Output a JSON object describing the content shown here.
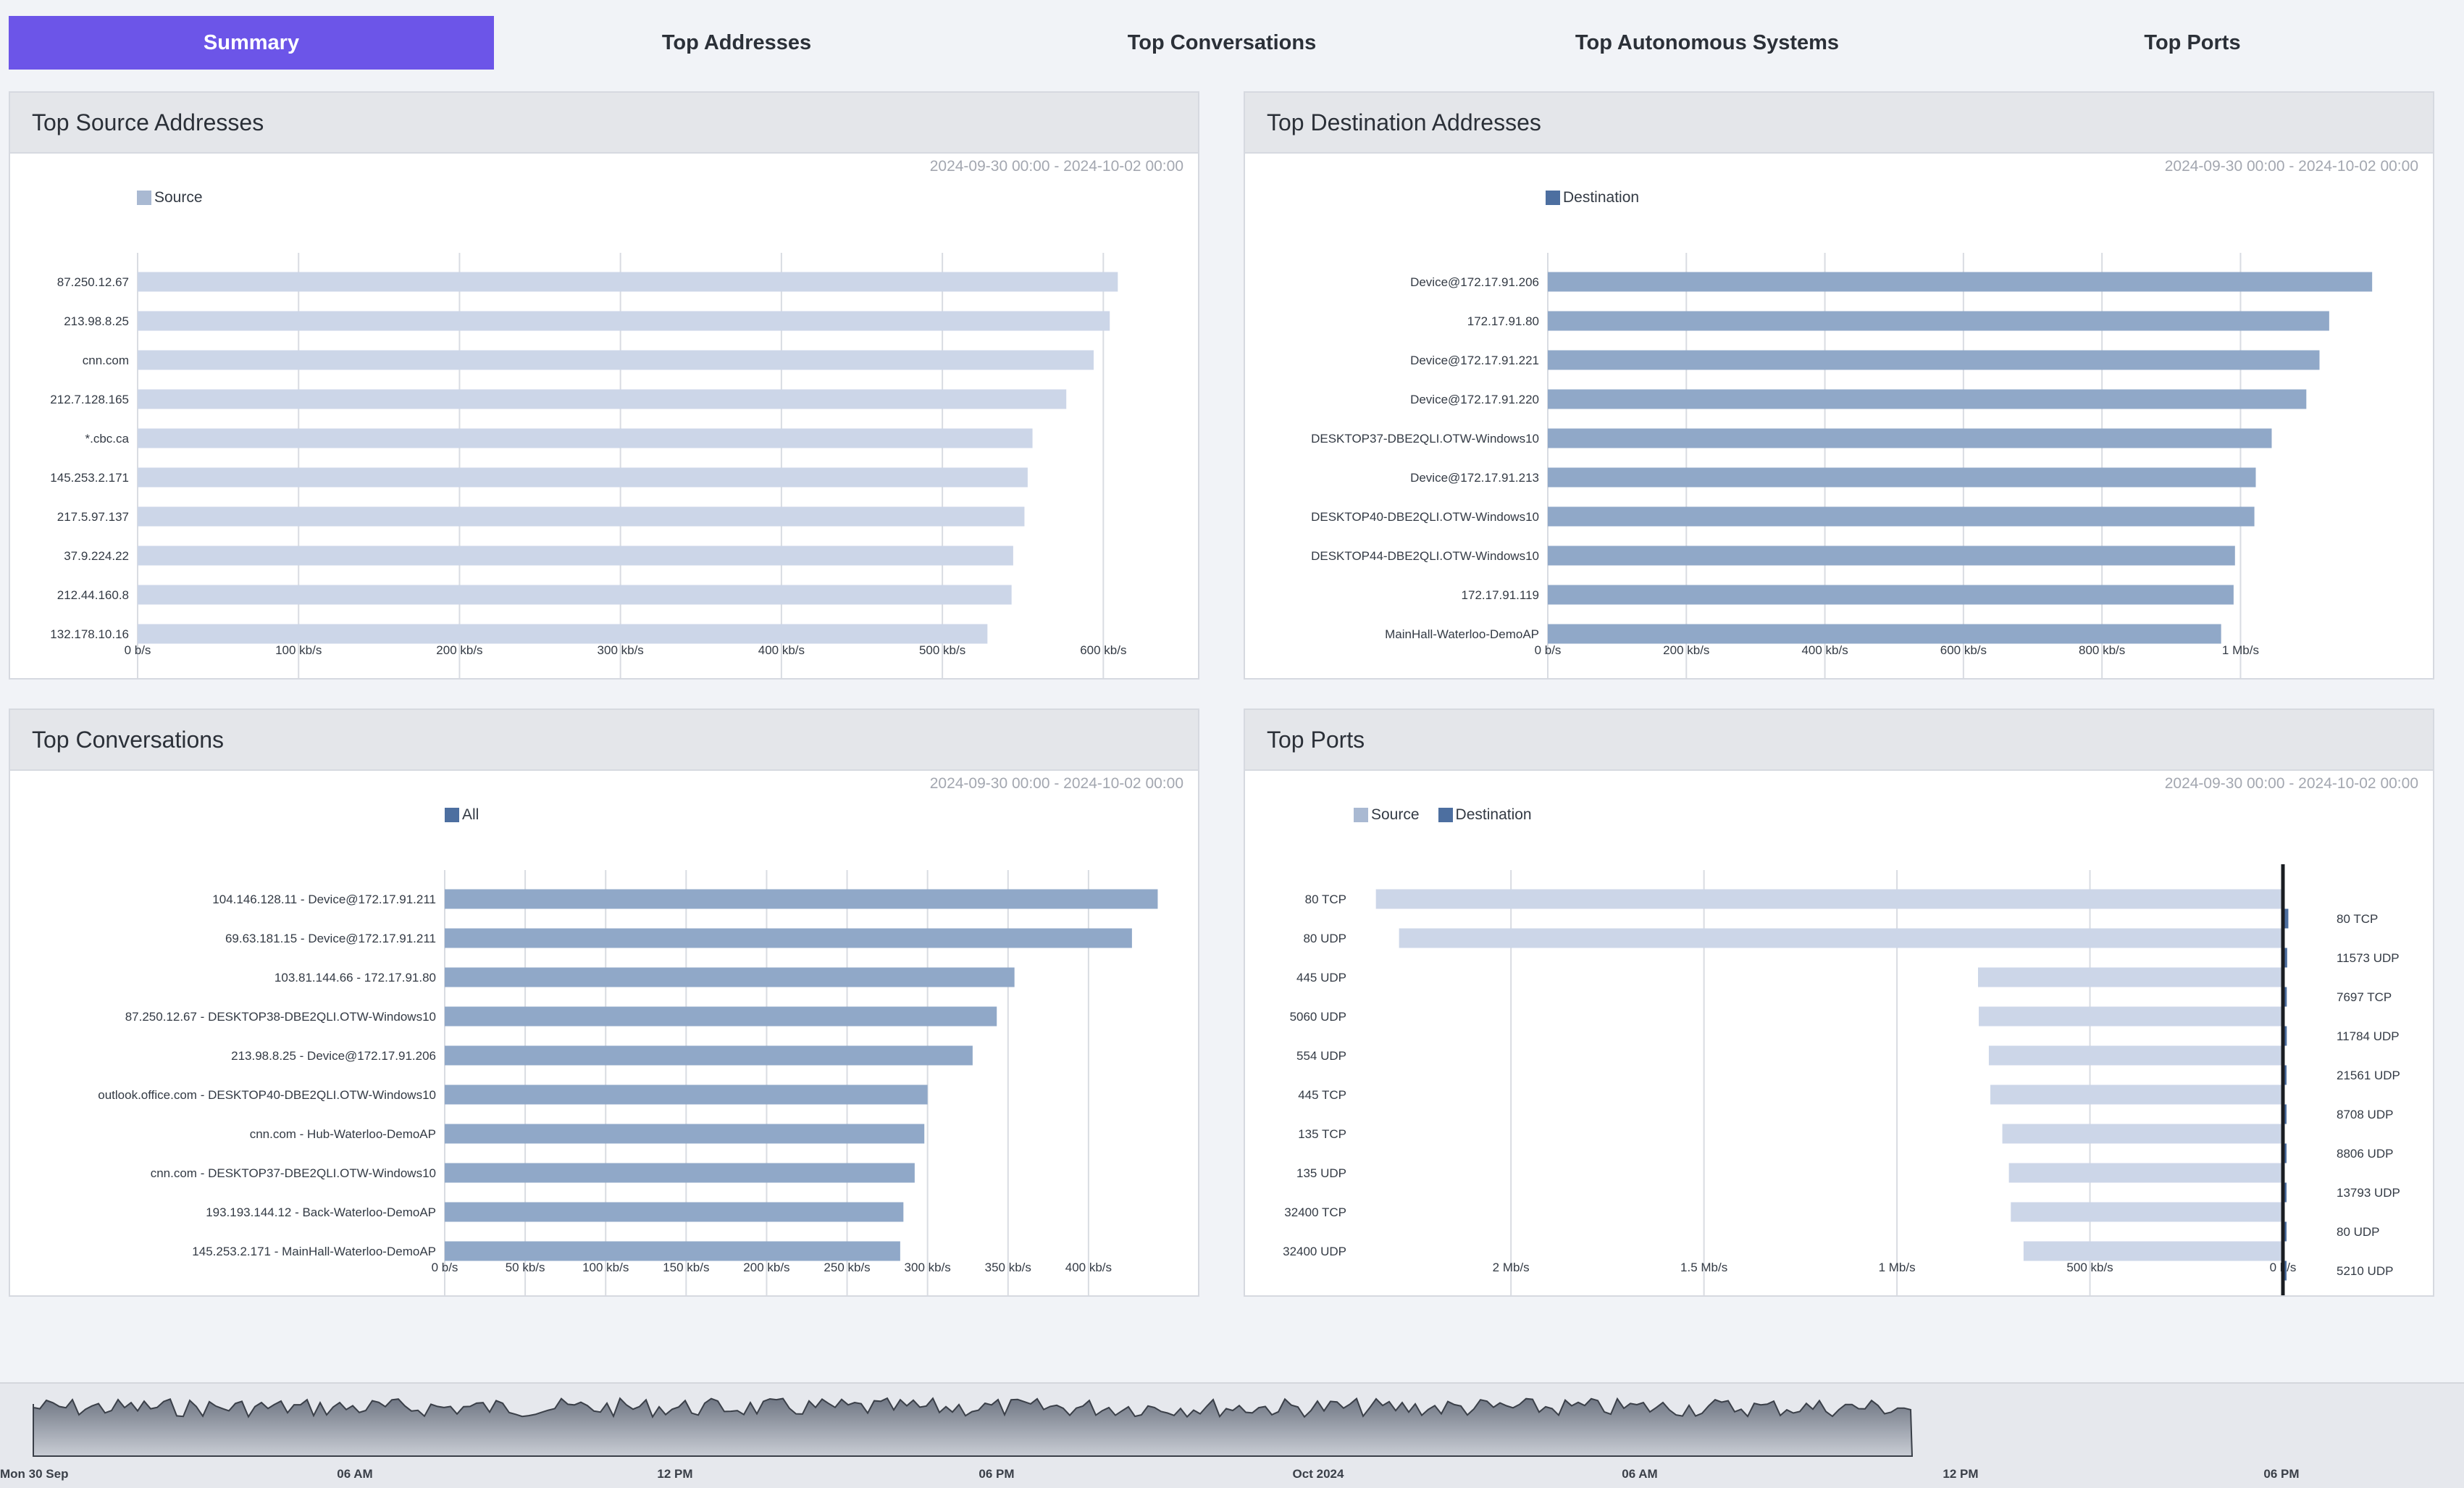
{
  "tabs": [
    {
      "label": "Summary",
      "active": true
    },
    {
      "label": "Top Addresses",
      "active": false
    },
    {
      "label": "Top Conversations",
      "active": false
    },
    {
      "label": "Top Autonomous Systems",
      "active": false
    },
    {
      "label": "Top Ports",
      "active": false
    }
  ],
  "colors": {
    "accent": "#6c55e8",
    "source_bar": "#ccd6e8",
    "dest_bar": "#90a8c8",
    "dest_legend": "#4d6fa0",
    "source_legend": "#a9b9d2"
  },
  "panels": {
    "src": {
      "title": "Top Source Addresses",
      "date": "2024-09-30 00:00 - 2024-10-02 00:00",
      "legend": [
        {
          "label": "Source",
          "color": "#a9b9d2"
        }
      ],
      "chart_data": {
        "type": "bar",
        "orientation": "horizontal",
        "categories": [
          "87.250.12.67",
          "213.98.8.25",
          "cnn.com",
          "212.7.128.165",
          "*.cbc.ca",
          "145.253.2.171",
          "217.5.97.137",
          "37.9.224.22",
          "212.44.160.8",
          "132.178.10.16"
        ],
        "values": [
          609,
          604,
          594,
          577,
          556,
          553,
          551,
          544,
          543,
          528
        ],
        "unit": "kb/s",
        "xlim": [
          0,
          630
        ],
        "ticks": [
          {
            "v": 0,
            "label": "0 b/s"
          },
          {
            "v": 100,
            "label": "100 kb/s"
          },
          {
            "v": 200,
            "label": "200 kb/s"
          },
          {
            "v": 300,
            "label": "300 kb/s"
          },
          {
            "v": 400,
            "label": "400 kb/s"
          },
          {
            "v": 500,
            "label": "500 kb/s"
          },
          {
            "v": 600,
            "label": "600 kb/s"
          }
        ],
        "series_color": "#ccd6e8"
      }
    },
    "dst": {
      "title": "Top Destination Addresses",
      "date": "2024-09-30 00:00 - 2024-10-02 00:00",
      "legend": [
        {
          "label": "Destination",
          "color": "#4d6fa0"
        }
      ],
      "chart_data": {
        "type": "bar",
        "orientation": "horizontal",
        "categories": [
          "Device@172.17.91.206",
          "172.17.91.80",
          "Device@172.17.91.221",
          "Device@172.17.91.220",
          "DESKTOP37-DBE2QLI.OTW-Windows10",
          "Device@172.17.91.213",
          "DESKTOP40-DBE2QLI.OTW-Windows10",
          "DESKTOP44-DBE2QLI.OTW-Windows10",
          "172.17.91.119",
          "MainHall-Waterloo-DemoAP"
        ],
        "values": [
          1190,
          1128,
          1114,
          1095,
          1045,
          1022,
          1020,
          992,
          990,
          972
        ],
        "unit": "kb/s",
        "xlim": [
          0,
          1240
        ],
        "ticks": [
          {
            "v": 0,
            "label": "0 b/s"
          },
          {
            "v": 200,
            "label": "200 kb/s"
          },
          {
            "v": 400,
            "label": "400 kb/s"
          },
          {
            "v": 600,
            "label": "600 kb/s"
          },
          {
            "v": 800,
            "label": "800 kb/s"
          },
          {
            "v": 1000,
            "label": "1 Mb/s"
          }
        ],
        "series_color": "#90a8c8"
      }
    },
    "conv": {
      "title": "Top Conversations",
      "date": "2024-09-30 00:00 - 2024-10-02 00:00",
      "legend": [
        {
          "label": "All",
          "color": "#4d6fa0"
        }
      ],
      "chart_data": {
        "type": "bar",
        "orientation": "horizontal",
        "categories": [
          "104.146.128.11 - Device@172.17.91.211",
          "69.63.181.15 - Device@172.17.91.211",
          "103.81.144.66 - 172.17.91.80",
          "87.250.12.67 - DESKTOP38-DBE2QLI.OTW-Windows10",
          "213.98.8.25 - Device@172.17.91.206",
          "outlook.office.com - DESKTOP40-DBE2QLI.OTW-Windows10",
          "cnn.com - Hub-Waterloo-DemoAP",
          "cnn.com - DESKTOP37-DBE2QLI.OTW-Windows10",
          "193.193.144.12 - Back-Waterloo-DemoAP",
          "145.253.2.171 - MainHall-Waterloo-DemoAP"
        ],
        "values": [
          443,
          427,
          354,
          343,
          328,
          300,
          298,
          292,
          285,
          283
        ],
        "unit": "kb/s",
        "xlim": [
          0,
          450
        ],
        "ticks": [
          {
            "v": 0,
            "label": "0 b/s"
          },
          {
            "v": 50,
            "label": "50 kb/s"
          },
          {
            "v": 100,
            "label": "100 kb/s"
          },
          {
            "v": 150,
            "label": "150 kb/s"
          },
          {
            "v": 200,
            "label": "200 kb/s"
          },
          {
            "v": 250,
            "label": "250 kb/s"
          },
          {
            "v": 300,
            "label": "300 kb/s"
          },
          {
            "v": 350,
            "label": "350 kb/s"
          },
          {
            "v": 400,
            "label": "400 kb/s"
          }
        ],
        "series_color": "#90a8c8"
      }
    },
    "ports": {
      "title": "Top Ports",
      "date": "2024-09-30 00:00 - 2024-10-02 00:00",
      "legend": [
        {
          "label": "Source",
          "color": "#a9b9d2"
        },
        {
          "label": "Destination",
          "color": "#4d6fa0"
        }
      ],
      "chart_data": {
        "type": "bar",
        "orientation": "horizontal-diverging",
        "unit": "kb/s",
        "xlim": [
          0,
          2370
        ],
        "source_categories": [
          "80 TCP",
          "80 UDP",
          "445 UDP",
          "5060 UDP",
          "554 UDP",
          "445 TCP",
          "135 TCP",
          "135 UDP",
          "32400 TCP",
          "32400 UDP"
        ],
        "source_values": [
          2350,
          2290,
          790,
          788,
          762,
          758,
          727,
          710,
          705,
          672
        ],
        "dest_categories": [
          "80 TCP",
          "11573 UDP",
          "7697 TCP",
          "11784 UDP",
          "21561 UDP",
          "8708 UDP",
          "8806 UDP",
          "13793 UDP",
          "80 UDP",
          "5210 UDP"
        ],
        "dest_values": [
          14,
          11,
          10,
          10,
          9,
          9,
          8,
          8,
          7,
          7
        ],
        "ticks": [
          {
            "v": 2000,
            "label": "2 Mb/s"
          },
          {
            "v": 1500,
            "label": "1.5 Mb/s"
          },
          {
            "v": 1000,
            "label": "1 Mb/s"
          },
          {
            "v": 500,
            "label": "500 kb/s"
          },
          {
            "v": 0,
            "label": "0 b/s"
          }
        ],
        "source_color": "#ccd6e8",
        "dest_color": "#4d6fa0"
      }
    }
  },
  "navigator": {
    "labels": [
      "Mon 30 Sep",
      "06 AM",
      "12 PM",
      "06 PM",
      "Oct 2024",
      "06 AM",
      "12 PM",
      "06 PM"
    ],
    "fill_color": "#6f7683"
  }
}
